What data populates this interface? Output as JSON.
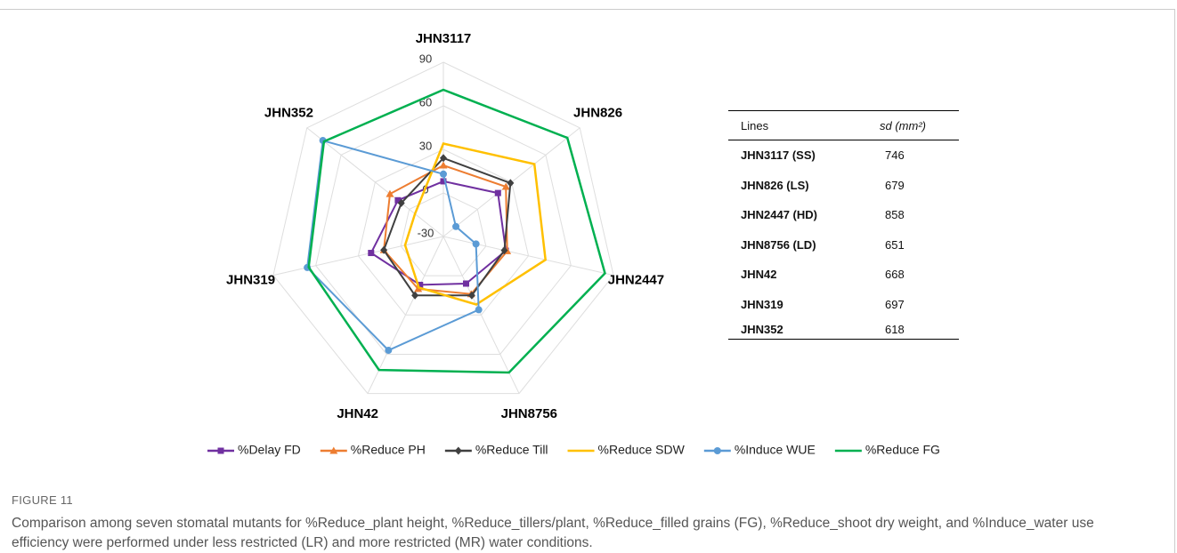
{
  "chart_data": {
    "type": "radar",
    "categories": [
      "JHN3117",
      "JHN826",
      "JHN2447",
      "JHN8756",
      "JHN42",
      "JHN319",
      "JHN352"
    ],
    "ylim": [
      -30,
      90
    ],
    "yticks": [
      -30,
      0,
      30,
      60,
      90
    ],
    "grid": true,
    "legend": "bottom",
    "series": [
      {
        "name": "%Delay FD",
        "color": "#7030a0",
        "marker": "square",
        "values": [
          8,
          18,
          14,
          6,
          7,
          21,
          10
        ]
      },
      {
        "name": "%Reduce PH",
        "color": "#ed7d31",
        "marker": "triangle",
        "values": [
          19,
          25,
          15,
          14,
          10,
          12,
          17
        ]
      },
      {
        "name": "%Reduce Till",
        "color": "#404040",
        "marker": "diamond",
        "values": [
          24,
          29,
          13,
          15,
          15,
          12,
          7
        ]
      },
      {
        "name": "%Reduce SDW",
        "color": "#ffc000",
        "marker": "none",
        "values": [
          34,
          50,
          42,
          22,
          9,
          -3,
          -5
        ]
      },
      {
        "name": "%Induce WUE",
        "color": "#5b9bd5",
        "marker": "circle",
        "values": [
          13,
          -19,
          -7,
          26,
          57,
          66,
          76
        ]
      },
      {
        "name": "%Reduce FG",
        "color": "#00b050",
        "marker": "none",
        "values": [
          71,
          79,
          84,
          74,
          72,
          65,
          75
        ]
      }
    ]
  },
  "table": {
    "header": [
      "Lines",
      "sd (mm²)"
    ],
    "rows": [
      [
        "JHN3117 (SS)",
        746
      ],
      [
        "JHN826 (LS)",
        679
      ],
      [
        "JHN2447 (HD)",
        858
      ],
      [
        "JHN8756 (LD)",
        651
      ],
      [
        "JHN42",
        668
      ],
      [
        "JHN319",
        697
      ],
      [
        "JHN352",
        618
      ]
    ]
  },
  "caption": {
    "label": "FIGURE 11",
    "text": "Comparison among seven stomatal mutants for %Reduce_plant height, %Reduce_tillers/plant, %Reduce_filled grains (FG), %Reduce_shoot dry weight, and %Induce_water use efficiency were performed under less restricted (LR) and more restricted (MR) water conditions."
  }
}
